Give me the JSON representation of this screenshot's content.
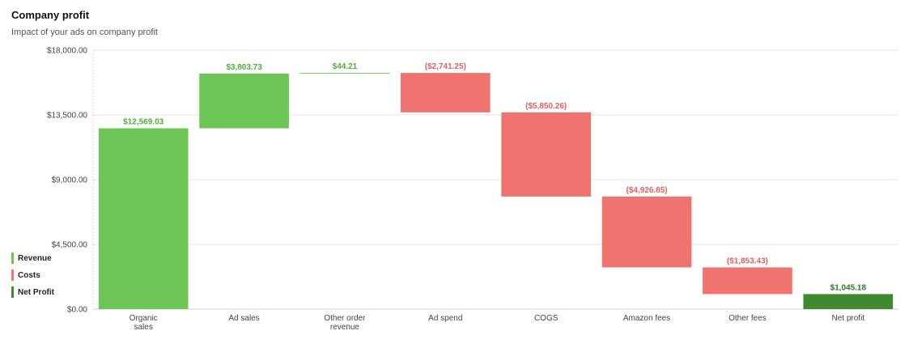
{
  "header": {
    "title": "Company profit",
    "subtitle": "Impact of your ads on company profit"
  },
  "legend": [
    {
      "label": "Revenue",
      "color": "#6cc554"
    },
    {
      "label": "Costs",
      "color": "#ef7470"
    },
    {
      "label": "Net Profit",
      "color": "#3f8a2e"
    }
  ],
  "chart_data": {
    "type": "bar",
    "subtype": "waterfall",
    "title": "Company profit",
    "subtitle": "Impact of your ads on company profit",
    "ylim": [
      0,
      18000
    ],
    "yticks": [
      0,
      4500,
      9000,
      13500,
      18000
    ],
    "ytick_labels": [
      "$0.00",
      "$4,500.00",
      "$9,000.00",
      "$13,500.00",
      "$18,000.00"
    ],
    "grid": true,
    "legend_position": "left",
    "categories": [
      [
        "Organic",
        "sales"
      ],
      [
        "Ad sales"
      ],
      [
        "Other order",
        "revenue"
      ],
      [
        "Ad spend"
      ],
      [
        "COGS"
      ],
      [
        "Amazon fees"
      ],
      [
        "Other fees"
      ],
      [
        "Net profit"
      ]
    ],
    "bars": [
      {
        "kind": "revenue",
        "start": 0,
        "end": 12569.03,
        "label": "$12,569.03"
      },
      {
        "kind": "revenue",
        "start": 12569.03,
        "end": 16372.76,
        "label": "$3,803.73"
      },
      {
        "kind": "revenue",
        "start": 16372.76,
        "end": 16416.97,
        "label": "$44.21"
      },
      {
        "kind": "cost",
        "start": 16416.97,
        "end": 13675.72,
        "label": "($2,741.25)"
      },
      {
        "kind": "cost",
        "start": 13675.72,
        "end": 7825.46,
        "label": "($5,850.26)"
      },
      {
        "kind": "cost",
        "start": 7825.46,
        "end": 2898.61,
        "label": "($4,926.85)"
      },
      {
        "kind": "cost",
        "start": 2898.61,
        "end": 1045.18,
        "label": "($1,853.43)"
      },
      {
        "kind": "net",
        "start": 0,
        "end": 1045.18,
        "label": "$1,045.18"
      }
    ],
    "colors": {
      "revenue": "#6cc554",
      "cost": "#ef7470",
      "net": "#3f8a2e",
      "revenue_label": "#4fae38",
      "cost_label": "#e3605b",
      "net_label": "#2f7a22"
    }
  }
}
